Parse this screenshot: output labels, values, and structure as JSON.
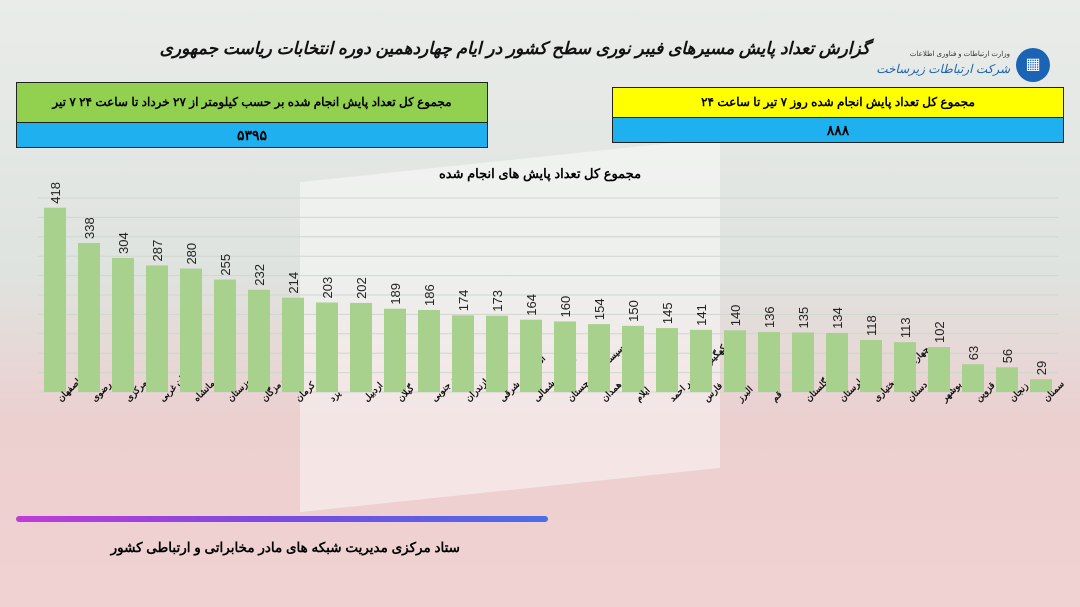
{
  "title": "گزارش تعداد پایش مسیرهای فیبر نوری سطح کشور در ایام چهاردهمین دوره انتخابات ریاست جمهوری",
  "logo": {
    "ministry": "وزارت ارتباطات و فناوری اطلاعات",
    "company": "شرکت ارتباطات زیرساخت"
  },
  "box_km": {
    "label": "مجموع کل تعداد پایش انجام شده بر حسب کیلومتر از ۲۷ خرداد تا ساعت ۲۴ ۷ تیر",
    "value": "۵۳۹۵",
    "color": "#92d050"
  },
  "box_day": {
    "label": "مجموع کل تعداد پایش انجام شده روز ۷ تیر تا ساعت  ۲۴",
    "value": "۸۸۸",
    "color": "#ffff00"
  },
  "footer": "ستاد مرکزی مدیریت شبکه های مادر مخابراتی و ارتباطی کشور",
  "chart_data": {
    "type": "bar",
    "title": "مجموع کل تعداد پایش های انجام شده",
    "categories": [
      "اصفهان",
      "خراسان رضوی",
      "مرکزی",
      "آذربایجان غربی",
      "کرمانشاه",
      "خوزستان",
      "هرمزگان",
      "کرمان",
      "یزد",
      "اردبیل",
      "گیلان",
      "خراسان جنوبی",
      "مازندران",
      "آذربایجان شرقی",
      "خراسان شمالی",
      "سیستان و بلوچستان",
      "همدان",
      "ایلام",
      "کهگیلویه و بویر احمد",
      "فارس",
      "البرز",
      "قم",
      "گلستان",
      "لرستان",
      "چهارمحال و بختیاری",
      "کردستان",
      "بوشهر",
      "قزوین",
      "زنجان",
      "سمنان"
    ],
    "values": [
      418,
      338,
      304,
      287,
      280,
      255,
      232,
      214,
      203,
      202,
      189,
      186,
      174,
      173,
      164,
      160,
      154,
      150,
      145,
      141,
      140,
      136,
      135,
      134,
      118,
      113,
      102,
      63,
      56,
      29
    ],
    "bar_color": "#a9d18e",
    "grid": true,
    "ylim": [
      0,
      440
    ]
  }
}
